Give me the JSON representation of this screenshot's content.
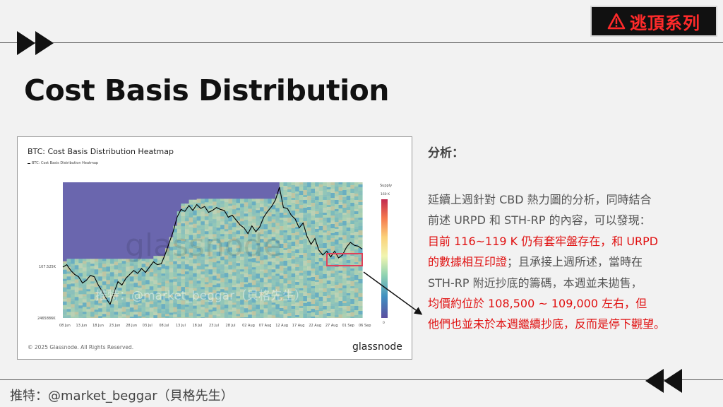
{
  "badge": {
    "icon": "warning-icon",
    "text": "逃頂系列",
    "color": "#ff2a2a"
  },
  "title": "Cost Basis Distribution",
  "chart_card": {
    "title": "BTC: Cost Basis Distribution Heatmap",
    "legend": "BTC: Cost Basis Distribution Heatmap",
    "copyright": "© 2025 Glassnode. All Rights Reserved.",
    "brand": "glassnode",
    "watermark": "glassnode",
    "overlay_handle": "推特：@market_beggar（貝格先生）"
  },
  "chart_data": {
    "type": "heatmap",
    "title": "BTC: Cost Basis Distribution Heatmap",
    "x_tick_labels": [
      "08 Jun",
      "13 Jun",
      "18 Jun",
      "23 Jun",
      "28 Jun",
      "03 Jul",
      "08 Jul",
      "13 Jul",
      "18 Jul",
      "23 Jul",
      "28 Jul",
      "02 Aug",
      "07 Aug",
      "12 Aug",
      "17 Aug",
      "22 Aug",
      "27 Aug",
      "01 Sep",
      "06 Sep"
    ],
    "y_tick_labels": [
      "107.525K",
      "2465886K"
    ],
    "colorbar": {
      "label": "Supply",
      "max_label": "160 K",
      "min_label": "0"
    },
    "price_series": {
      "name": "BTC: Cost Basis Distribution Heatmap",
      "values": [
        106.5,
        107.0,
        105.8,
        105.0,
        104.5,
        103.2,
        103.8,
        104.8,
        104.5,
        102.8,
        101.5,
        100.0,
        98.8,
        101.2,
        103.5,
        102.8,
        104.2,
        105.0,
        105.8,
        105.2,
        106.2,
        105.4,
        106.5,
        107.6,
        107.0,
        107.2,
        109.2,
        111.5,
        113.8,
        116.8,
        118.4,
        118.0,
        119.2,
        118.2,
        119.4,
        118.6,
        119.0,
        117.8,
        118.2,
        118.8,
        118.4,
        118.2,
        116.8,
        117.2,
        116.2,
        115.2,
        114.6,
        113.4,
        115.0,
        113.8,
        114.8,
        116.8,
        118.0,
        119.0,
        120.4,
        123.0,
        118.8,
        118.6,
        117.2,
        116.4,
        114.6,
        115.6,
        112.8,
        111.2,
        112.4,
        110.0,
        109.0,
        109.8,
        108.6,
        109.8,
        108.4,
        109.0,
        110.6,
        111.6,
        111.0,
        110.8,
        110.2
      ],
      "y_range": [
        96,
        124
      ]
    },
    "highlight_box": "current price zone ~108.5K–109K"
  },
  "analysis": {
    "heading": "分析：",
    "lines": [
      {
        "text": "延續上週針對 CBD 熱力圖的分析，同時結合",
        "red": false
      },
      {
        "text": "前述 URPD 和 STH-RP 的內容，可以發現：",
        "red": false
      },
      {
        "text": "目前 116~119 K 仍有套牢盤存在，和 URPD",
        "red": true
      },
      {
        "text": "的數據相互印證；且承接上週所述，當時在",
        "red": false,
        "mixed_prefix": "的數據相互印證"
      },
      {
        "text": "STH-RP 附近抄底的籌碼，本週並未拋售，",
        "red": false
      },
      {
        "text": "均價約位於 108,500 ~ 109,000 左右，但",
        "red": true
      },
      {
        "text": "他們也並未於本週繼續抄底，反而是停下觀望。",
        "red": true
      }
    ],
    "red_color": "#e01010"
  },
  "footer": {
    "handle": "推特：@market_beggar（貝格先生）"
  },
  "nav": {
    "next_icon": "fast-forward-icon",
    "prev_icon": "rewind-icon"
  }
}
